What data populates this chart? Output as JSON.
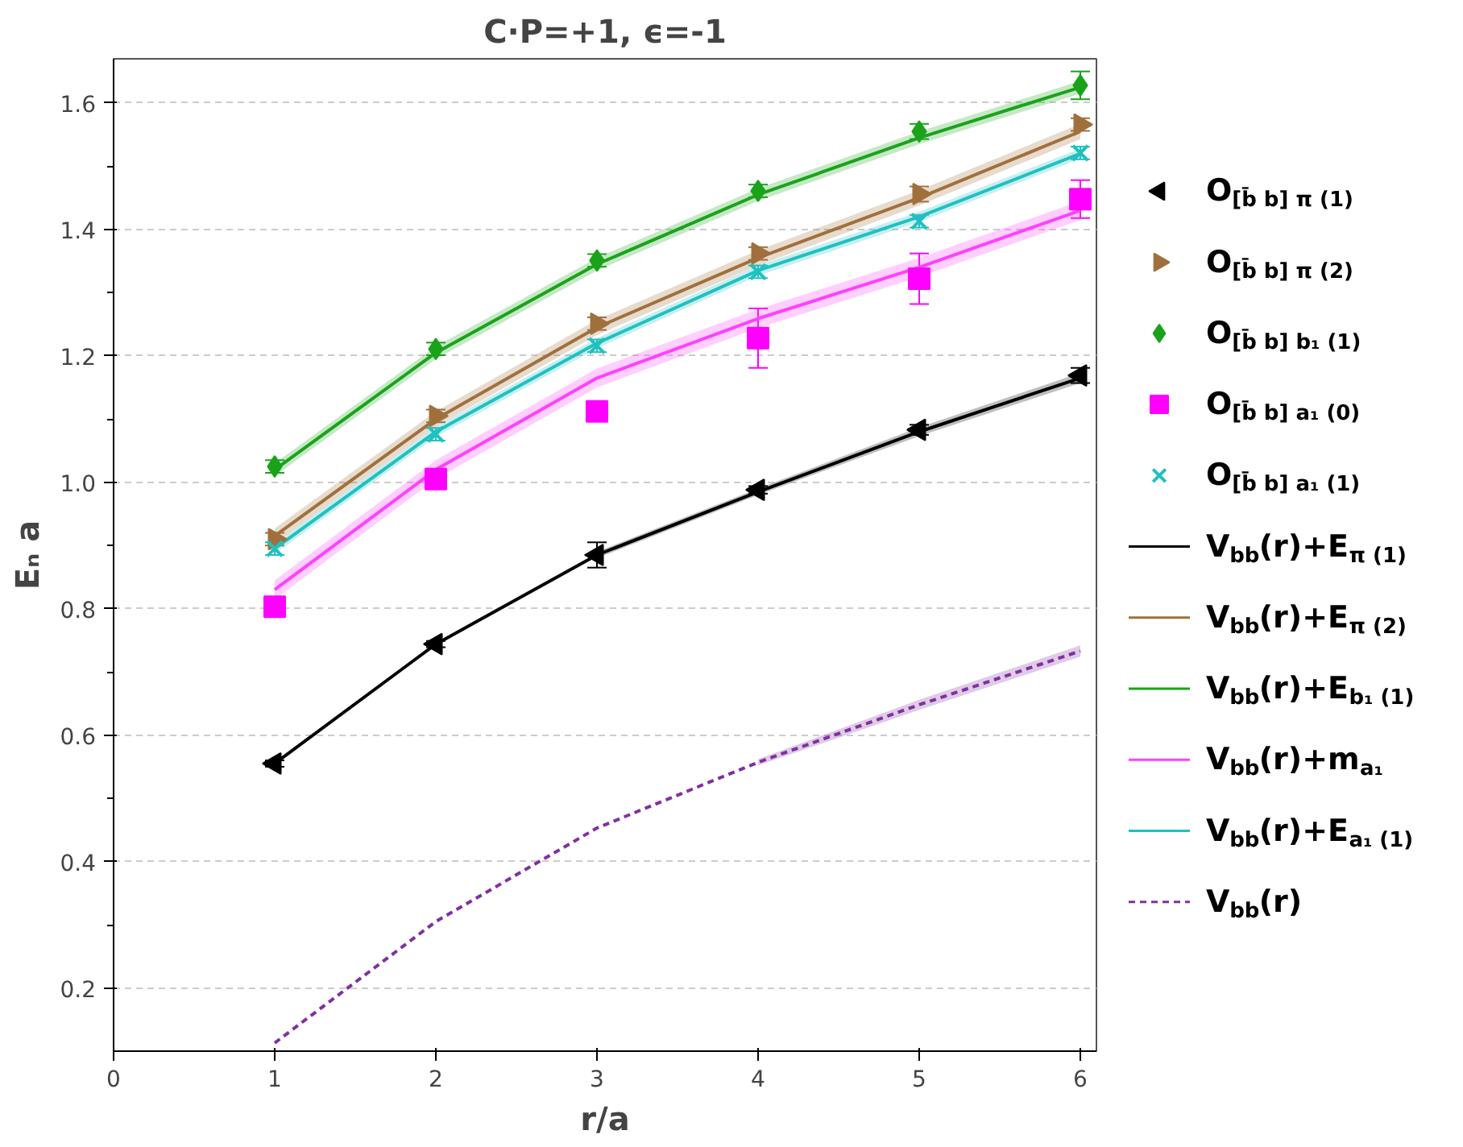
{
  "chart_data": {
    "type": "scatter",
    "title": "C·P=+1, ϵ=-1",
    "xlabel": "r/a",
    "ylabel": "Eₙ a",
    "x": [
      1,
      2,
      3,
      4,
      5,
      6
    ],
    "xlim": [
      0,
      6.1
    ],
    "xticks": [
      0,
      1,
      2,
      3,
      4,
      5,
      6
    ],
    "ylim": [
      0.1,
      1.67
    ],
    "yticks": [
      0.2,
      0.4,
      0.6,
      0.8,
      {
        "value": 1,
        "label": "1.0"
      },
      1.2,
      1.4,
      1.6
    ],
    "grid": "y",
    "legend": "right",
    "series": [
      {
        "name": "O$_{[b̄ b] π (1)}$",
        "marker": "triangle-left",
        "color": "#000000",
        "values": [
          0.555,
          0.744,
          0.885,
          0.988,
          1.083,
          1.169
        ],
        "errors": [
          0.005,
          0.005,
          0.02,
          0.006,
          0.008,
          0.012
        ]
      },
      {
        "name": "O$_{[b̄ b] π (2)}$",
        "marker": "triangle-right",
        "color": "#a0703c",
        "values": [
          0.91,
          1.105,
          1.251,
          1.362,
          1.456,
          1.566
        ],
        "errors": [
          0.01,
          0.01,
          0.01,
          0.01,
          0.012,
          0.01
        ]
      },
      {
        "name": "O$_{[b̄ b] b₁ (1)}$",
        "marker": "diamond",
        "color": "#1aa31a",
        "values": [
          1.025,
          1.211,
          1.351,
          1.461,
          1.555,
          1.628
        ],
        "errors": [
          0.01,
          0.01,
          0.01,
          0.01,
          0.012,
          0.022
        ]
      },
      {
        "name": "O$_{[b̄ b] a₁ (0)}$",
        "marker": "square",
        "color": "#ff00ff",
        "values": [
          0.803,
          1.005,
          1.112,
          1.228,
          1.322,
          1.448
        ],
        "errors": [
          0.01,
          0.012,
          0.015,
          0.047,
          0.04,
          0.03
        ]
      },
      {
        "name": "O$_{[b̄ b] a₁ (1)}$",
        "marker": "cross",
        "color": "#20c0c0",
        "values": [
          0.895,
          1.076,
          1.216,
          1.333,
          1.413,
          1.521
        ],
        "errors": [
          0.01,
          0.01,
          0.01,
          0.01,
          0.01,
          0.01
        ]
      },
      {
        "name": "V$_{bb}$(r)+E$_{π (1)}$",
        "type": "line",
        "color": "#000000",
        "values": [
          0.555,
          0.744,
          0.885,
          0.985,
          1.08,
          1.165
        ],
        "lower": [
          null,
          null,
          0.88,
          0.98,
          1.073,
          1.157
        ],
        "upper": [
          null,
          null,
          0.89,
          0.99,
          1.087,
          1.173
        ]
      },
      {
        "name": "V$_{bb}$(r)+E$_{π (2)}$",
        "type": "line",
        "color": "#a0703c",
        "values": [
          0.915,
          1.1,
          1.245,
          1.355,
          1.45,
          1.555
        ],
        "lower": [
          0.903,
          1.088,
          1.233,
          1.343,
          1.438,
          1.543
        ],
        "upper": [
          0.927,
          1.112,
          1.257,
          1.367,
          1.462,
          1.567
        ]
      },
      {
        "name": "V$_{bb}$(r)+E$_{b₁ (1)}$",
        "type": "line",
        "color": "#1aa31a",
        "values": [
          1.02,
          1.205,
          1.345,
          1.455,
          1.545,
          1.625
        ],
        "lower": [
          1.01,
          1.195,
          1.335,
          1.445,
          1.535,
          1.615
        ],
        "upper": [
          1.03,
          1.215,
          1.355,
          1.465,
          1.555,
          1.635
        ]
      },
      {
        "name": "V$_{bb}$(r)+m$_{a₁}$",
        "type": "line",
        "color": "#ff40ff",
        "values": [
          0.83,
          1.02,
          1.165,
          1.259,
          1.34,
          1.43
        ],
        "lower": [
          0.815,
          1.005,
          1.15,
          1.244,
          1.325,
          1.415
        ],
        "upper": [
          0.845,
          1.035,
          1.18,
          1.274,
          1.355,
          1.445
        ]
      },
      {
        "name": "V$_{bb}$(r)+E$_{a₁ (1)}$",
        "type": "line",
        "color": "#20c0c0",
        "values": [
          0.895,
          1.08,
          1.22,
          1.335,
          1.42,
          1.52
        ],
        "lower": [
          0.887,
          1.072,
          1.212,
          1.327,
          1.412,
          1.512
        ],
        "upper": [
          0.903,
          1.088,
          1.228,
          1.343,
          1.428,
          1.528
        ]
      },
      {
        "name": "V$_{bb}$(r)",
        "type": "line",
        "line_style": "dashed",
        "color": "#8030a0",
        "values": [
          0.113,
          0.305,
          0.453,
          0.557,
          0.648,
          0.733
        ],
        "lower": [
          null,
          null,
          null,
          0.552,
          0.64,
          0.724
        ],
        "upper": [
          null,
          null,
          null,
          0.562,
          0.656,
          0.742
        ]
      }
    ]
  }
}
